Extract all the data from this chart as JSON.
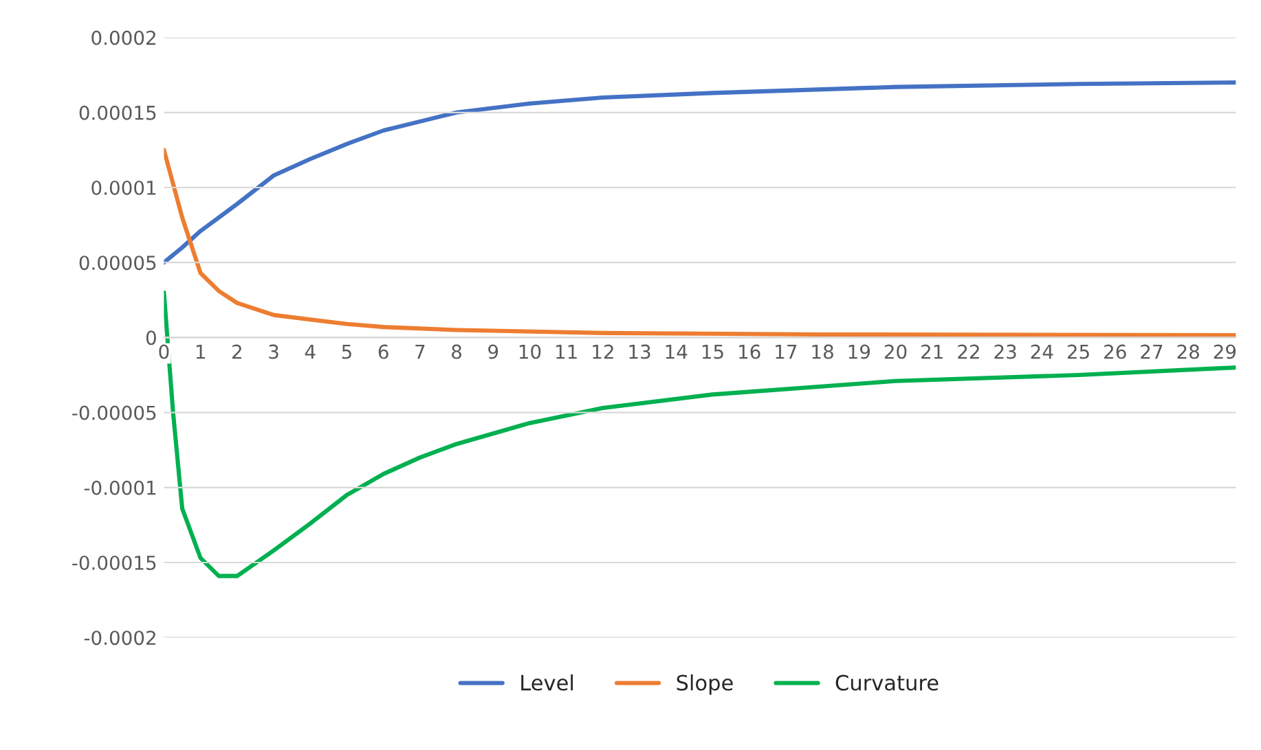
{
  "chart_data": {
    "type": "line",
    "xlim": [
      0,
      29.3
    ],
    "xticks": [
      0,
      1,
      2,
      3,
      4,
      5,
      6,
      7,
      8,
      9,
      10,
      11,
      12,
      13,
      14,
      15,
      16,
      17,
      18,
      19,
      20,
      21,
      22,
      23,
      24,
      25,
      26,
      27,
      28,
      29
    ],
    "ylim": [
      -0.0002,
      0.0002
    ],
    "yticks": [
      {
        "value": -0.0002,
        "label": "-0.0002"
      },
      {
        "value": -0.00015,
        "label": "-0.00015"
      },
      {
        "value": -0.0001,
        "label": "-0.0001"
      },
      {
        "value": -5e-05,
        "label": "-0.00005"
      },
      {
        "value": 0,
        "label": "0"
      },
      {
        "value": 5e-05,
        "label": "0.00005"
      },
      {
        "value": 0.0001,
        "label": "0.0001"
      },
      {
        "value": 0.00015,
        "label": "0.00015"
      },
      {
        "value": 0.0002,
        "label": "0.0002"
      }
    ],
    "grid": "y",
    "legend": "bottom",
    "marker": "none",
    "line_style": "solid",
    "series": [
      {
        "name": "Level",
        "color": "#4472c4",
        "x": [
          0,
          0.5,
          1,
          1.5,
          2,
          3,
          4,
          5,
          6,
          7,
          8,
          10,
          12,
          15,
          20,
          25,
          29.3
        ],
        "values": [
          5e-05,
          6e-05,
          7.1e-05,
          8e-05,
          8.9e-05,
          0.000108,
          0.000119,
          0.000129,
          0.000138,
          0.000144,
          0.00015,
          0.000156,
          0.00016,
          0.000163,
          0.000167,
          0.000169,
          0.00017
        ]
      },
      {
        "name": "Slope",
        "color": "#ed7d31",
        "x": [
          0,
          0.5,
          1,
          1.5,
          2,
          3,
          4,
          5,
          6,
          8,
          12,
          18,
          29.3
        ],
        "values": [
          0.000125,
          8e-05,
          4.3e-05,
          3.1e-05,
          2.3e-05,
          1.5e-05,
          1.2e-05,
          9e-06,
          7e-06,
          5e-06,
          3e-06,
          2e-06,
          1.5e-06
        ]
      },
      {
        "name": "Curvature",
        "color": "#00b050",
        "x": [
          0,
          0.25,
          0.5,
          1,
          1.5,
          2,
          3,
          4,
          5,
          6,
          7,
          8,
          10,
          12,
          15,
          20,
          25,
          29.3
        ],
        "values": [
          3e-05,
          -5e-05,
          -0.000114,
          -0.000147,
          -0.000159,
          -0.000159,
          -0.000142,
          -0.000124,
          -0.000105,
          -9.1e-05,
          -8e-05,
          -7.1e-05,
          -5.7e-05,
          -4.7e-05,
          -3.8e-05,
          -2.9e-05,
          -2.5e-05,
          -2e-05
        ]
      }
    ]
  }
}
